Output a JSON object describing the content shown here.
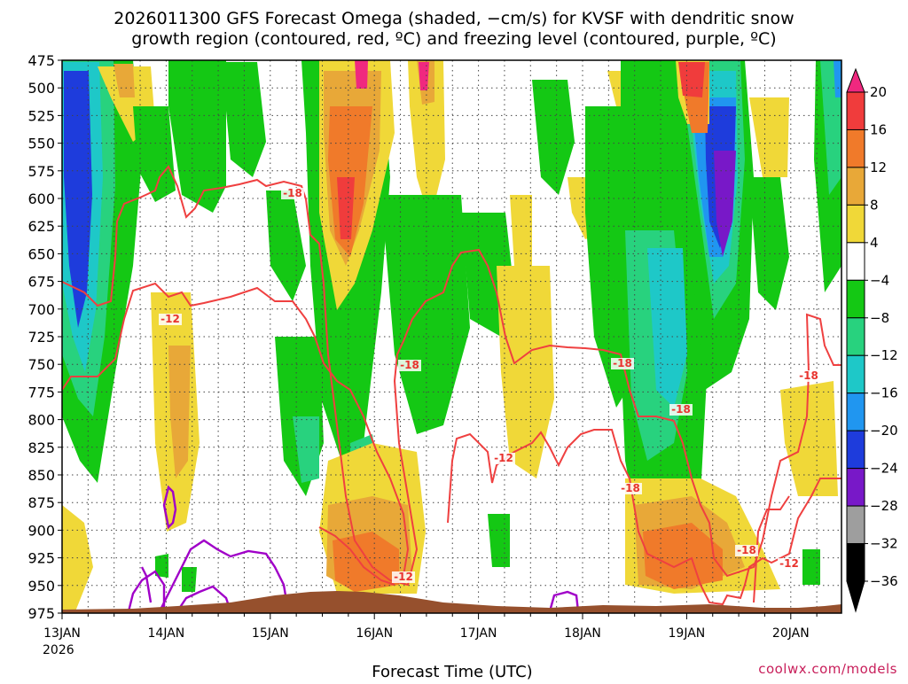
{
  "title_line1": "2026011300 GFS Forecast Omega (shaded, −cm/s) for KVSF with dendritic snow",
  "title_line2": "growth region (contoured, red, ºC) and freezing level (contoured, purple, ºC)",
  "xlabel": "Forecast Time (UTC)",
  "credit": "coolwx.com/models",
  "colors": {
    "dgz_contour": "#ef4040",
    "freezing_contour": "#a000c8",
    "terrain": "#96502d"
  },
  "chart_data": {
    "type": "heatmap",
    "y_axis": {
      "ticks": [
        "475",
        "500",
        "525",
        "550",
        "575",
        "600",
        "625",
        "650",
        "675",
        "700",
        "725",
        "750",
        "775",
        "800",
        "825",
        "850",
        "875",
        "900",
        "925",
        "950",
        "975"
      ],
      "range_hPa": [
        475,
        975
      ],
      "inverted": true
    },
    "x_axis": {
      "ticks": [
        "13JAN",
        "14JAN",
        "15JAN",
        "16JAN",
        "17JAN",
        "18JAN",
        "19JAN",
        "20JAN"
      ],
      "year_label": "2026",
      "range_hours": [
        0,
        180
      ]
    },
    "grid": true,
    "colorbar": {
      "ticks": [
        "20",
        "16",
        "12",
        "8",
        "4",
        "−4",
        "−8",
        "−12",
        "−16",
        "−20",
        "−24",
        "−28",
        "−32",
        "−36"
      ],
      "colors": [
        "#f0287f",
        "#f03c3c",
        "#f07a2a",
        "#e8a838",
        "#f0d838",
        "#ffffff",
        "#14c814",
        "#28d27e",
        "#1ec8c8",
        "#2096f0",
        "#1e3cdc",
        "#7818c8",
        "#9e9e9e",
        "#000000"
      ]
    },
    "contour_labels": {
      "dgz": [
        "-18",
        "-12",
        "-18",
        "-12",
        "-18",
        "-18",
        "-18",
        "-12",
        "-18",
        "-18",
        "-12"
      ],
      "freezing": []
    }
  }
}
